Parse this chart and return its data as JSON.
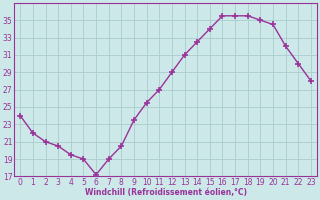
{
  "x": [
    0,
    1,
    2,
    3,
    4,
    5,
    6,
    7,
    8,
    9,
    10,
    11,
    12,
    13,
    14,
    15,
    16,
    17,
    18,
    19,
    20,
    21,
    22,
    23
  ],
  "y": [
    24,
    22,
    21,
    20.5,
    19.5,
    19,
    17.2,
    19,
    20.5,
    23.5,
    25.5,
    27,
    29,
    31,
    32.5,
    34,
    35.5,
    35.5,
    35.5,
    35,
    34.5,
    32,
    30,
    28
  ],
  "line_color": "#993399",
  "marker": "+",
  "marker_size": 4,
  "marker_lw": 1.2,
  "bg_color": "#cce8e8",
  "grid_color": "#aacccc",
  "xlabel": "Windchill (Refroidissement éolien,°C)",
  "xlabel_color": "#993399",
  "tick_color": "#993399",
  "spine_color": "#993399",
  "xlim": [
    -0.5,
    23.5
  ],
  "ylim": [
    17,
    37
  ],
  "yticks": [
    17,
    19,
    21,
    23,
    25,
    27,
    29,
    31,
    33,
    35
  ],
  "xticks": [
    0,
    1,
    2,
    3,
    4,
    5,
    6,
    7,
    8,
    9,
    10,
    11,
    12,
    13,
    14,
    15,
    16,
    17,
    18,
    19,
    20,
    21,
    22,
    23
  ],
  "linewidth": 1.0,
  "tick_fontsize": 5.5,
  "xlabel_fontsize": 5.5
}
